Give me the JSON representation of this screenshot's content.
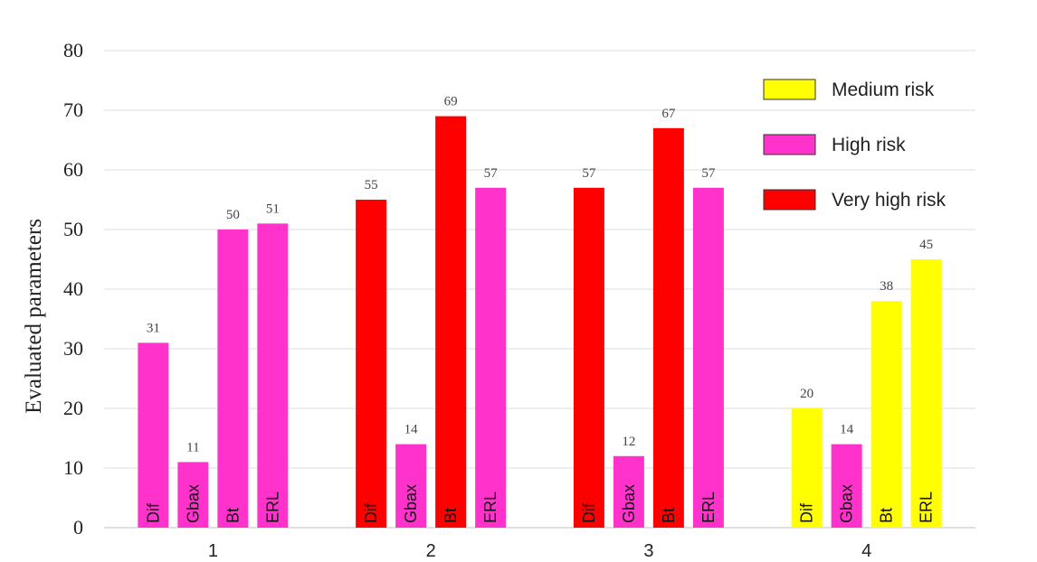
{
  "chart_data": {
    "type": "bar",
    "ylabel": "Evaluated parameters",
    "ylim": [
      0,
      80
    ],
    "yticks": [
      0,
      10,
      20,
      30,
      40,
      50,
      60,
      70,
      80
    ],
    "grid": true,
    "legend_position": "top-right",
    "risk_levels": [
      {
        "key": "medium",
        "label": "Medium risk",
        "color": "#ffff00"
      },
      {
        "key": "high",
        "label": "High risk",
        "color": "#ff33cc"
      },
      {
        "key": "very_high",
        "label": "Very high risk",
        "color": "#ff0000"
      }
    ],
    "groups": [
      {
        "label": "1",
        "bars": [
          {
            "param": "Dif",
            "value": 31,
            "risk": "high"
          },
          {
            "param": "Gbax",
            "value": 11,
            "risk": "high"
          },
          {
            "param": "Bt",
            "value": 50,
            "risk": "high"
          },
          {
            "param": "ERL",
            "value": 51,
            "risk": "high"
          }
        ]
      },
      {
        "label": "2",
        "bars": [
          {
            "param": "Dif",
            "value": 55,
            "risk": "very_high"
          },
          {
            "param": "Gbax",
            "value": 14,
            "risk": "high"
          },
          {
            "param": "Bt",
            "value": 69,
            "risk": "very_high"
          },
          {
            "param": "ERL",
            "value": 57,
            "risk": "high"
          }
        ]
      },
      {
        "label": "3",
        "bars": [
          {
            "param": "Dif",
            "value": 57,
            "risk": "very_high"
          },
          {
            "param": "Gbax",
            "value": 12,
            "risk": "high"
          },
          {
            "param": "Bt",
            "value": 67,
            "risk": "very_high"
          },
          {
            "param": "ERL",
            "value": 57,
            "risk": "high"
          }
        ]
      },
      {
        "label": "4",
        "bars": [
          {
            "param": "Dif",
            "value": 20,
            "risk": "medium"
          },
          {
            "param": "Gbax",
            "value": 14,
            "risk": "high"
          },
          {
            "param": "Bt",
            "value": 38,
            "risk": "medium"
          },
          {
            "param": "ERL",
            "value": 45,
            "risk": "medium"
          }
        ]
      }
    ]
  }
}
